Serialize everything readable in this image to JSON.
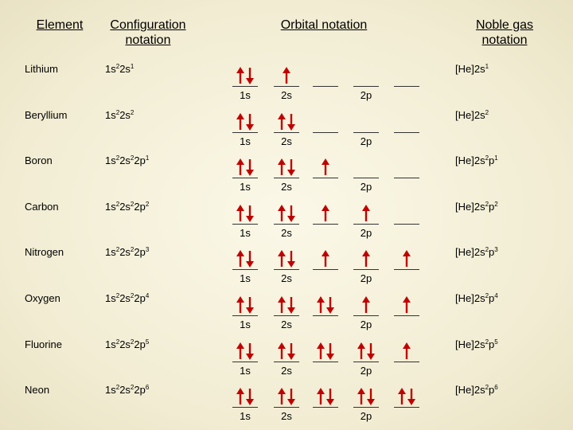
{
  "headers": {
    "element": "Element",
    "configuration": "Configuration notation",
    "orbital": "Orbital notation",
    "noble_gas": "Noble gas notation"
  },
  "orbital_labels": {
    "s1": "1s",
    "s2": "2s",
    "p2": "2p"
  },
  "colors": {
    "arrow": "#c00000",
    "line": "#333333"
  },
  "rows": [
    {
      "element": "Lithium",
      "config": [
        [
          "1s",
          "2"
        ],
        [
          "2s",
          "1"
        ]
      ],
      "noble": [
        [
          "[He]2s",
          "1"
        ]
      ],
      "electrons": {
        "1s": 2,
        "2s": 1,
        "2p": [
          0,
          0,
          0
        ]
      }
    },
    {
      "element": "Beryllium",
      "config": [
        [
          "1s",
          "2"
        ],
        [
          "2s",
          "2"
        ]
      ],
      "noble": [
        [
          "[He]2s",
          "2"
        ]
      ],
      "electrons": {
        "1s": 2,
        "2s": 2,
        "2p": [
          0,
          0,
          0
        ]
      }
    },
    {
      "element": "Boron",
      "config": [
        [
          "1s",
          "2"
        ],
        [
          "2s",
          "2"
        ],
        [
          "2p",
          "1"
        ]
      ],
      "noble": [
        [
          "[He]2s",
          "2"
        ],
        [
          "p",
          "1"
        ]
      ],
      "electrons": {
        "1s": 2,
        "2s": 2,
        "2p": [
          1,
          0,
          0
        ]
      }
    },
    {
      "element": "Carbon",
      "config": [
        [
          "1s",
          "2"
        ],
        [
          "2s",
          "2"
        ],
        [
          "2p",
          "2"
        ]
      ],
      "noble": [
        [
          "[He]2s",
          "2"
        ],
        [
          "p",
          "2"
        ]
      ],
      "electrons": {
        "1s": 2,
        "2s": 2,
        "2p": [
          1,
          1,
          0
        ]
      }
    },
    {
      "element": "Nitrogen",
      "config": [
        [
          "1s",
          "2"
        ],
        [
          "2s",
          "2"
        ],
        [
          "2p",
          "3"
        ]
      ],
      "noble": [
        [
          "[He]2s",
          "2"
        ],
        [
          "p",
          "3"
        ]
      ],
      "electrons": {
        "1s": 2,
        "2s": 2,
        "2p": [
          1,
          1,
          1
        ]
      }
    },
    {
      "element": "Oxygen",
      "config": [
        [
          "1s",
          "2"
        ],
        [
          "2s",
          "2"
        ],
        [
          "2p",
          "4"
        ]
      ],
      "noble": [
        [
          "[He]2s",
          "2"
        ],
        [
          "p",
          "4"
        ]
      ],
      "electrons": {
        "1s": 2,
        "2s": 2,
        "2p": [
          2,
          1,
          1
        ]
      }
    },
    {
      "element": "Fluorine",
      "config": [
        [
          "1s",
          "2"
        ],
        [
          "2s",
          "2"
        ],
        [
          "2p",
          "5"
        ]
      ],
      "noble": [
        [
          "[He]2s",
          "2"
        ],
        [
          "p",
          "5"
        ]
      ],
      "electrons": {
        "1s": 2,
        "2s": 2,
        "2p": [
          2,
          2,
          1
        ]
      }
    },
    {
      "element": "Neon",
      "config": [
        [
          "1s",
          "2"
        ],
        [
          "2s",
          "2"
        ],
        [
          "2p",
          "6"
        ]
      ],
      "noble": [
        [
          "[He]2s",
          "2"
        ],
        [
          "p",
          "6"
        ]
      ],
      "electrons": {
        "1s": 2,
        "2s": 2,
        "2p": [
          2,
          2,
          2
        ]
      }
    }
  ]
}
